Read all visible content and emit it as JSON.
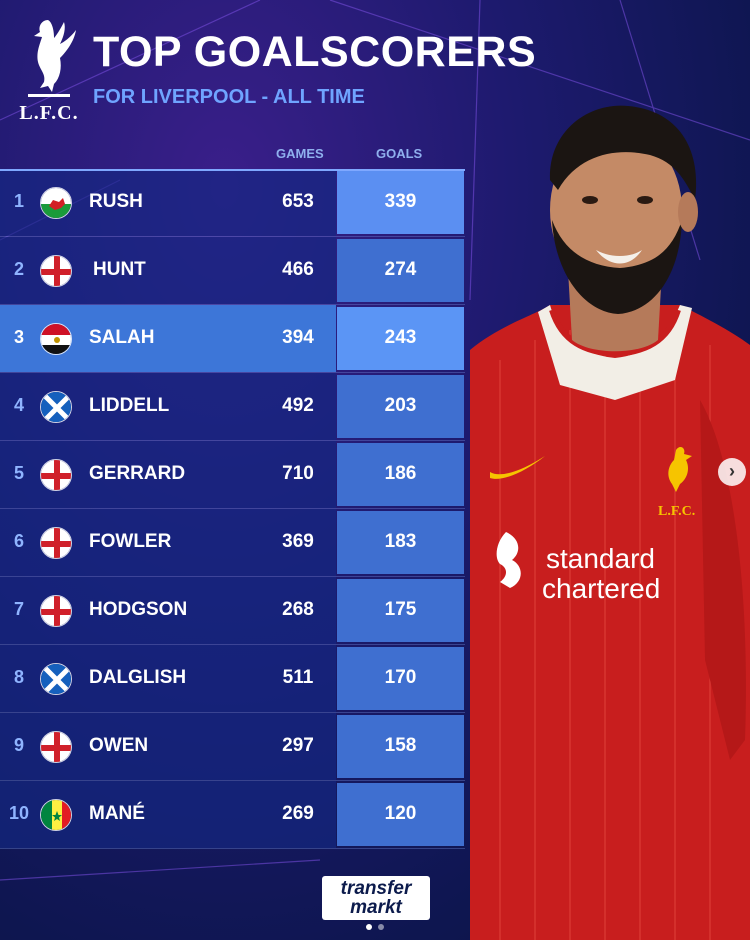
{
  "header": {
    "title": "TOP GOALSCORERS",
    "subtitle": "FOR LIVERPOOL - ALL TIME",
    "logo_text": "L.F.C."
  },
  "columns": {
    "games": "GAMES",
    "goals": "GOALS"
  },
  "players": [
    {
      "rank": "1",
      "name": "RUSH",
      "country": "wales-flag-icon",
      "games": "653",
      "goals": "339"
    },
    {
      "rank": "2",
      "name": "HUNT",
      "country": "england-flag-icon",
      "games": "466",
      "goals": "274"
    },
    {
      "rank": "3",
      "name": "SALAH",
      "country": "egypt-flag-icon",
      "games": "394",
      "goals": "243"
    },
    {
      "rank": "4",
      "name": "LIDDELL",
      "country": "scotland-flag-icon",
      "games": "492",
      "goals": "203"
    },
    {
      "rank": "5",
      "name": "GERRARD",
      "country": "england-flag-icon",
      "games": "710",
      "goals": "186"
    },
    {
      "rank": "6",
      "name": "FOWLER",
      "country": "england-flag-icon",
      "games": "369",
      "goals": "183"
    },
    {
      "rank": "7",
      "name": "HODGSON",
      "country": "england-flag-icon",
      "games": "268",
      "goals": "175"
    },
    {
      "rank": "8",
      "name": "DALGLISH",
      "country": "scotland-flag-icon",
      "games": "511",
      "goals": "170"
    },
    {
      "rank": "9",
      "name": "OWEN",
      "country": "england-flag-icon",
      "games": "297",
      "goals": "158"
    },
    {
      "rank": "10",
      "name": "MANÉ",
      "country": "senegal-flag-icon",
      "games": "269",
      "goals": "120"
    }
  ],
  "player_image": {
    "sponsor_line1": "standard",
    "sponsor_line2": "chartered",
    "crest_text": "L.F.C."
  },
  "brand": {
    "line1": "transfer",
    "line2": "markt"
  },
  "carousel": {
    "next_icon": "chevron-right-icon"
  },
  "colors": {
    "accent": "#6fa4ff",
    "row": "#14288a",
    "highlight": "#3d76d8",
    "kit_red": "#d0201f"
  }
}
